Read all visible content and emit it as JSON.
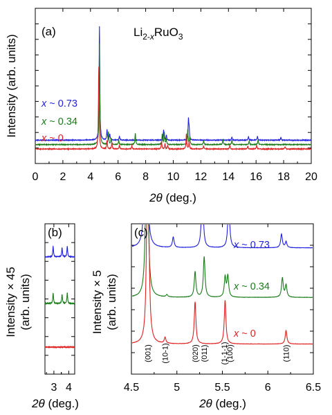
{
  "chart_data": [
    {
      "type": "line",
      "panel_label": "(a)",
      "compound_label": {
        "prefix": "Li",
        "sub_1": "2-",
        "sub_x": "x",
        "middle": "RuO",
        "sub_2": "3"
      },
      "ylabel": "Intensity (arb. units)",
      "xlabel": {
        "symbol": "2θ",
        "unit": " (deg.)"
      },
      "xlim": [
        0,
        20
      ],
      "x_ticks": [
        "0",
        "2",
        "4",
        "6",
        "8",
        "10",
        "12",
        "14",
        "16",
        "18",
        "20"
      ],
      "grid": false,
      "series": [
        {
          "name": "x ~ 0.73",
          "var": "x",
          "rest": " ~ 0.73",
          "color": "#1f1fe0",
          "baseline": 0.35,
          "peaks": [
            [
              4.65,
              9.0
            ],
            [
              5.2,
              0.8
            ],
            [
              5.4,
              0.5
            ],
            [
              6.1,
              0.3
            ],
            [
              9.3,
              0.8
            ],
            [
              9.5,
              0.4
            ],
            [
              11.1,
              1.6
            ],
            [
              11.15,
              0.8
            ],
            [
              14.25,
              0.25
            ],
            [
              15.45,
              0.3
            ],
            [
              16.1,
              0.3
            ],
            [
              17.8,
              0.25
            ]
          ]
        },
        {
          "name": "x ~ 0.34",
          "var": "x",
          "rest": " ~ 0.34",
          "color": "#1a7a1a",
          "baseline": 0.0,
          "peaks": [
            [
              4.65,
              8.0
            ],
            [
              5.3,
              1.0
            ],
            [
              5.5,
              0.5
            ],
            [
              6.05,
              0.35
            ],
            [
              7.25,
              0.9
            ],
            [
              9.2,
              0.8
            ],
            [
              9.35,
              1.0
            ],
            [
              9.5,
              0.4
            ],
            [
              11.05,
              1.2
            ],
            [
              11.2,
              0.6
            ],
            [
              12.2,
              0.3
            ],
            [
              13.6,
              0.4
            ],
            [
              14.25,
              0.35
            ],
            [
              15.5,
              0.3
            ],
            [
              16.15,
              0.4
            ]
          ]
        },
        {
          "name": "x ~ 0",
          "var": "x",
          "rest": " ~ 0",
          "color": "#e01f1f",
          "baseline": -0.35,
          "peaks": [
            [
              4.6,
              6.5
            ],
            [
              5.2,
              0.7
            ],
            [
              5.55,
              0.5
            ],
            [
              6.1,
              0.3
            ],
            [
              7.0,
              0.25
            ],
            [
              9.15,
              0.6
            ],
            [
              9.4,
              0.4
            ],
            [
              9.6,
              0.3
            ],
            [
              10.95,
              1.2
            ],
            [
              11.15,
              0.6
            ],
            [
              12.2,
              0.25
            ],
            [
              14.1,
              0.3
            ],
            [
              15.4,
              0.25
            ],
            [
              16.05,
              0.3
            ],
            [
              18.1,
              0.2
            ]
          ]
        }
      ]
    },
    {
      "type": "line",
      "panel_label": "(b)",
      "ylabel_lines": [
        "Intensity × 45",
        "(arb. units)"
      ],
      "xlabel": {
        "symbol": "2θ",
        "unit": " (deg.)"
      },
      "xlim": [
        2.4,
        4.4
      ],
      "x_ticks": [
        "3",
        "4"
      ],
      "grid": false,
      "series": [
        {
          "name": "x ~ 0.73",
          "color": "#1f1fe0",
          "baseline": 0.78,
          "peaks": [
            [
              2.95,
              0.07
            ],
            [
              3.55,
              0.06
            ],
            [
              3.9,
              0.07
            ]
          ]
        },
        {
          "name": "x ~ 0.34",
          "color": "#1a7a1a",
          "baseline": 0.47,
          "peaks": [
            [
              2.95,
              0.07
            ],
            [
              3.55,
              0.06
            ],
            [
              3.9,
              0.07
            ]
          ]
        },
        {
          "name": "x ~ 0",
          "color": "#e01f1f",
          "baseline": 0.18,
          "peaks": []
        }
      ]
    },
    {
      "type": "line",
      "panel_label": "(c)",
      "ylabel_lines": [
        "Intensity × 5",
        "(arb. units)"
      ],
      "xlabel": {
        "symbol": "2θ",
        "unit": " (deg.)"
      },
      "xlim": [
        4.5,
        6.5
      ],
      "x_ticks": [
        "4.5",
        "5",
        "5.5",
        "6",
        "6.5"
      ],
      "grid": false,
      "annotations": [
        {
          "text": "(001)",
          "x": 4.68
        },
        {
          "text": "(10-1)",
          "x": 4.87
        },
        {
          "text": "(020)",
          "x": 5.2
        },
        {
          "text": "(011)",
          "x": 5.3
        },
        {
          "text": "(1-1-1)",
          "x": 5.52
        },
        {
          "text": "(100)",
          "x": 5.58
        },
        {
          "text": "(110)",
          "x": 6.2
        }
      ],
      "series": [
        {
          "name": "x ~ 0.73",
          "var": "x",
          "rest": " ~ 0.73",
          "color": "#1f1fe0",
          "baseline": 0.84,
          "peaks": [
            [
              4.66,
              2.0
            ],
            [
              4.96,
              0.07
            ],
            [
              5.28,
              0.45
            ],
            [
              5.57,
              0.35
            ],
            [
              6.15,
              0.09
            ],
            [
              6.2,
              0.04
            ]
          ]
        },
        {
          "name": "x ~ 0.34",
          "var": "x",
          "rest": " ~ 0.34",
          "color": "#1a7a1a",
          "baseline": 0.51,
          "peaks": [
            [
              4.67,
              2.0
            ],
            [
              4.89,
              0.015
            ],
            [
              5.2,
              0.17
            ],
            [
              5.3,
              0.27
            ],
            [
              5.53,
              0.13
            ],
            [
              5.56,
              0.14
            ],
            [
              6.16,
              0.13
            ],
            [
              6.2,
              0.08
            ]
          ]
        },
        {
          "name": "x ~ 0",
          "var": "x",
          "rest": " ~ 0",
          "color": "#e01f1f",
          "baseline": 0.2,
          "peaks": [
            [
              4.68,
              2.0
            ],
            [
              4.87,
              0.04
            ],
            [
              5.2,
              0.28
            ],
            [
              5.53,
              0.29
            ],
            [
              6.2,
              0.09
            ]
          ]
        }
      ]
    }
  ]
}
